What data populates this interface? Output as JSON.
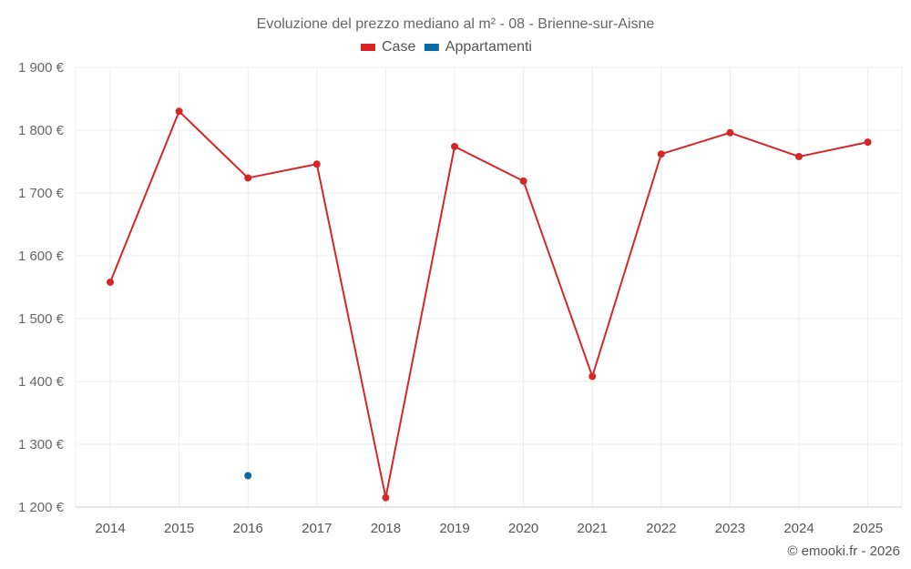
{
  "chart_data": {
    "type": "line",
    "title": "Evoluzione del prezzo mediano al m² - 08 - Brienne-sur-Aisne",
    "categories": [
      "2014",
      "2015",
      "2016",
      "2017",
      "2018",
      "2019",
      "2020",
      "2021",
      "2022",
      "2023",
      "2024",
      "2025"
    ],
    "series": [
      {
        "name": "Case",
        "color": "#d62728",
        "values": [
          1558,
          1830,
          1724,
          1746,
          1215,
          1774,
          1719,
          1408,
          1762,
          1796,
          1758,
          1781
        ]
      },
      {
        "name": "Appartamenti",
        "color": "#0b6aa2",
        "values": [
          null,
          null,
          1250,
          null,
          null,
          null,
          null,
          null,
          null,
          null,
          null,
          null
        ]
      }
    ],
    "ylim": [
      1200,
      1900
    ],
    "yticks": [
      1200,
      1300,
      1400,
      1500,
      1600,
      1700,
      1800,
      1900
    ],
    "ytick_labels": [
      "1 200 €",
      "1 300 €",
      "1 400 €",
      "1 500 €",
      "1 600 €",
      "1 700 €",
      "1 800 €",
      "1 900 €"
    ],
    "grid": true,
    "legend_position": "top-center"
  },
  "credit": "© emooki.fr - 2026"
}
